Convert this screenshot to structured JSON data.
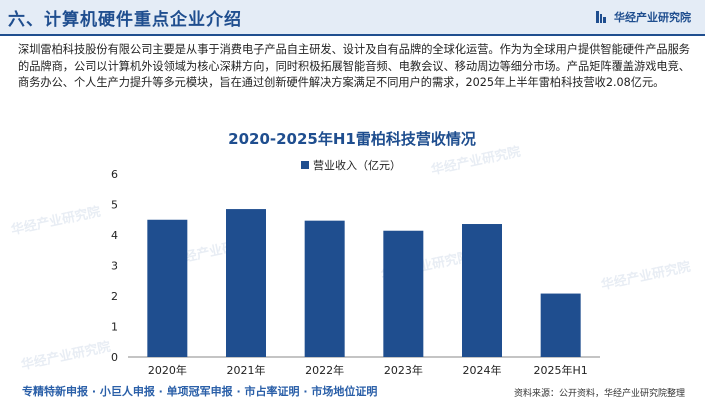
{
  "header": {
    "title": "六、计算机硬件重点企业介绍",
    "brand": "华经产业研究院"
  },
  "intro": "深圳雷柏科技股份有限公司主要是从事于消费电子产品自主研发、设计及自有品牌的全球化运营。作为为全球用户提供智能硬件产品服务的品牌商，公司以计算机外设领域为核心深耕方向，同时积极拓展智能音频、电教会议、移动周边等细分市场。产品矩阵覆盖游戏电竞、商务办公、个人生产力提升等多元模块，旨在通过创新硬件解决方案满足不同用户的需求，2025年上半年雷柏科技营收2.08亿元。",
  "watermark_text": "华经产业研究院",
  "colors": {
    "bar": "#1f4e8f",
    "title": "#1f4e8f",
    "accent": "#1f4e8f"
  },
  "chart_data": {
    "type": "bar",
    "title": "2020-2025年H1雷柏科技营收情况",
    "legend_position": "top",
    "categories": [
      "2020年",
      "2021年",
      "2022年",
      "2023年",
      "2024年",
      "2025年H1"
    ],
    "series": [
      {
        "name": "营业收入（亿元）",
        "values": [
          4.5,
          4.85,
          4.47,
          4.14,
          4.36,
          2.08
        ]
      }
    ],
    "y_ticks": [
      "0",
      "1",
      "2",
      "3",
      "4",
      "5",
      "6"
    ],
    "ylim": [
      0,
      6
    ],
    "grid": false,
    "xlabel": "",
    "ylabel": ""
  },
  "footer": {
    "left": "专精特新申报 · 小巨人申报 · 单项冠军申报 · 市占率证明 · 市场地位证明",
    "right": "资料来源：公开资料，华经产业研究院整理"
  }
}
